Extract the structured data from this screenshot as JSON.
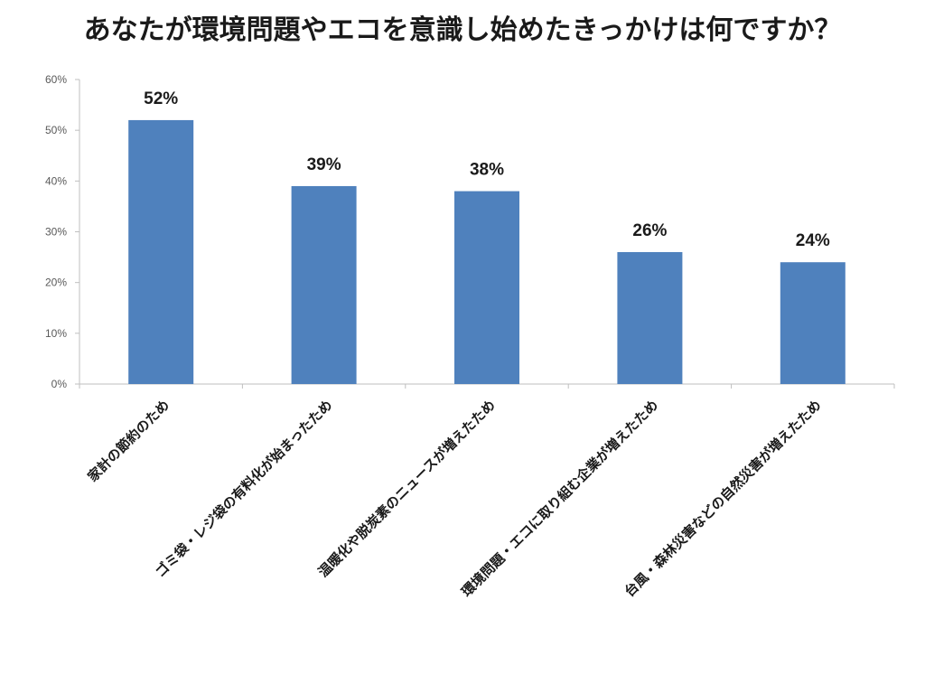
{
  "chart_data": {
    "type": "bar",
    "title": "あなたが環境問題やエコを意識し始めたきっかけは何ですか？",
    "categories": [
      "家計の節約のため",
      "ゴミ袋・レジ袋の有料化が始まったため",
      "温暖化や脱炭素のニュースが増えたため",
      "環境問題・エコに取り組む企業が増えたため",
      "台風・森林災害などの自然災害が増えたため"
    ],
    "values": [
      52,
      39,
      38,
      26,
      24
    ],
    "data_labels": [
      "52%",
      "39%",
      "38%",
      "26%",
      "24%"
    ],
    "ylim": [
      0,
      60
    ],
    "yticks": [
      0,
      10,
      20,
      30,
      40,
      50,
      60
    ],
    "ytick_labels": [
      "0%",
      "10%",
      "20%",
      "30%",
      "40%",
      "50%",
      "60%"
    ],
    "grid": false,
    "legend": "none",
    "bar_color": "#4f81bd"
  }
}
